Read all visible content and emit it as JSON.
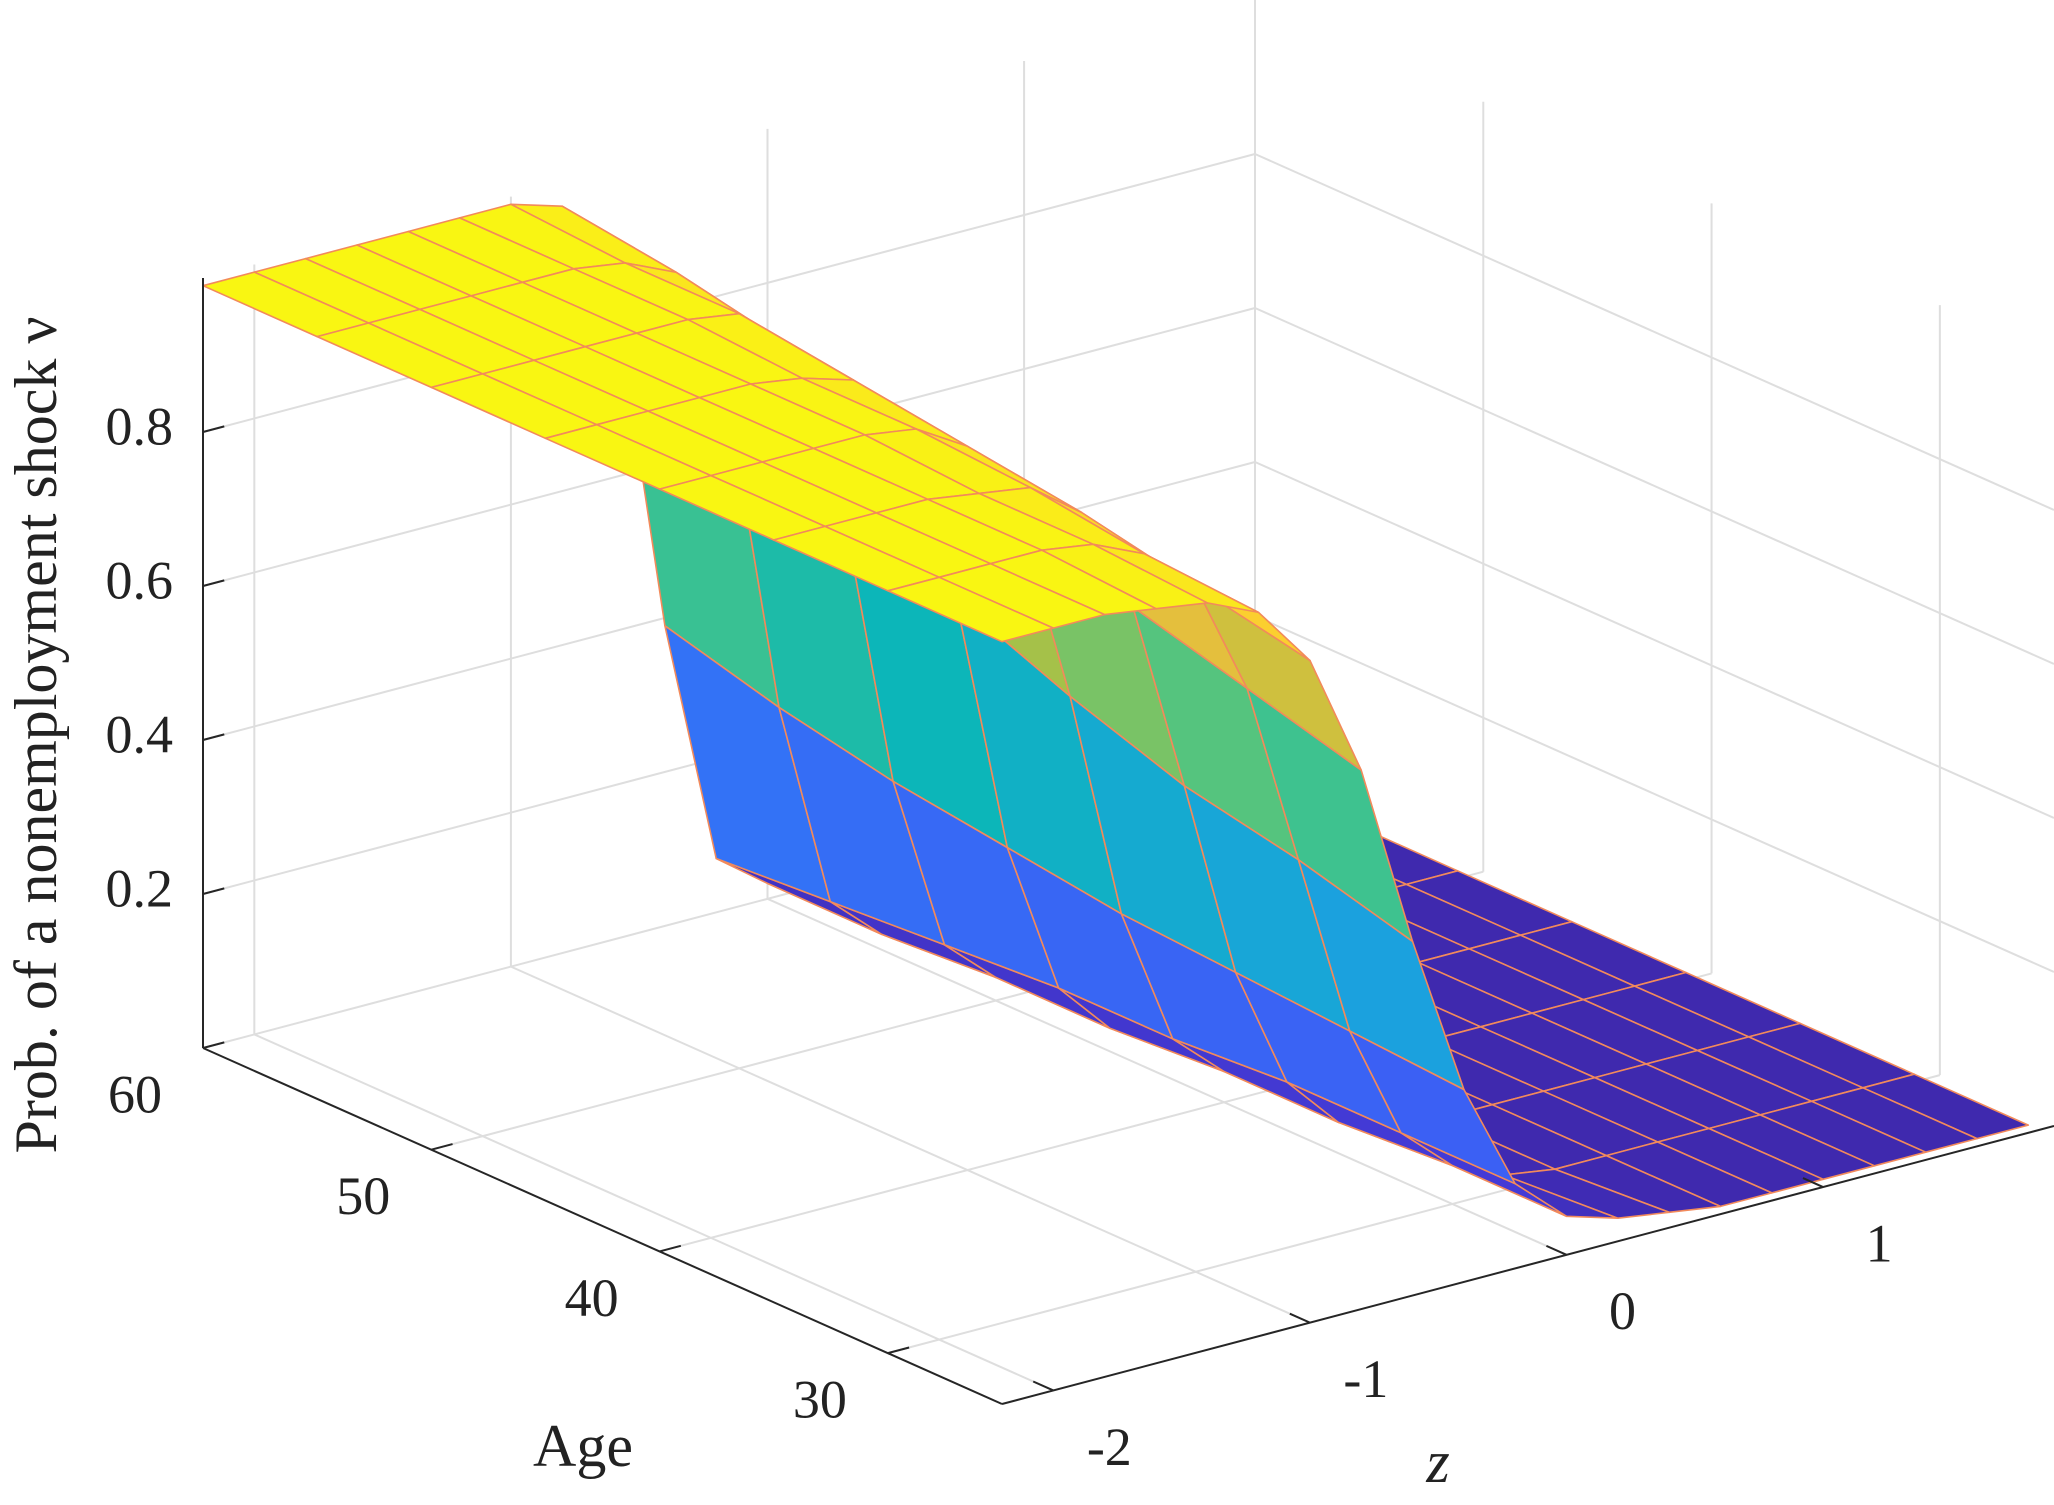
{
  "chart_data": {
    "type": "surface",
    "xlabel": "z",
    "ylabel": "Age",
    "zlabel": "Prob. of a nonemployment shock ν",
    "x": [
      -2.2,
      -2.0,
      -1.8,
      -1.6,
      -1.4,
      -1.2,
      -1.0,
      -0.8,
      -0.6,
      -0.4,
      -0.2,
      0,
      0.2,
      0.4,
      0.6,
      0.8,
      1.0,
      1.2,
      1.4,
      1.6,
      1.8
    ],
    "y": [
      25,
      30,
      35,
      40,
      45,
      50,
      55,
      60
    ],
    "values": [
      [
        0.99,
        0.99,
        0.99,
        0.98,
        0.97,
        0.94,
        0.86,
        0.7,
        0.46,
        0.25,
        0.11,
        0.05,
        0.03,
        0.02,
        0.01,
        0.01,
        0.01,
        0.01,
        0.01,
        0.01,
        0.01
      ],
      [
        0.99,
        0.99,
        0.99,
        0.99,
        0.98,
        0.95,
        0.89,
        0.74,
        0.5,
        0.26,
        0.11,
        0.05,
        0.02,
        0.01,
        0.01,
        0.01,
        0.01,
        0.01,
        0.01,
        0.01,
        0.01
      ],
      [
        0.99,
        0.99,
        0.99,
        0.99,
        0.98,
        0.97,
        0.92,
        0.78,
        0.53,
        0.27,
        0.11,
        0.04,
        0.02,
        0.01,
        0.01,
        0.01,
        0.01,
        0.01,
        0.01,
        0.01,
        0.01
      ],
      [
        0.99,
        0.99,
        0.99,
        0.99,
        0.99,
        0.98,
        0.94,
        0.83,
        0.58,
        0.28,
        0.1,
        0.04,
        0.02,
        0.01,
        0.01,
        0.01,
        0.01,
        0.01,
        0.01,
        0.01,
        0.01
      ],
      [
        0.99,
        0.99,
        0.99,
        0.99,
        0.99,
        0.98,
        0.96,
        0.88,
        0.64,
        0.3,
        0.1,
        0.03,
        0.01,
        0.01,
        0.01,
        0.01,
        0.01,
        0.01,
        0.01,
        0.01,
        0.01
      ],
      [
        0.99,
        0.99,
        0.99,
        0.99,
        0.99,
        0.99,
        0.98,
        0.92,
        0.7,
        0.32,
        0.09,
        0.03,
        0.01,
        0.01,
        0.01,
        0.01,
        0.01,
        0.01,
        0.01,
        0.01,
        0.01
      ],
      [
        0.99,
        0.99,
        0.99,
        0.99,
        0.99,
        0.99,
        0.98,
        0.95,
        0.77,
        0.35,
        0.08,
        0.02,
        0.01,
        0.01,
        0.01,
        0.01,
        0.01,
        0.01,
        0.01,
        0.01,
        0.01
      ],
      [
        0.99,
        0.99,
        0.99,
        0.99,
        0.99,
        0.99,
        0.99,
        0.97,
        0.85,
        0.39,
        0.07,
        0.02,
        0.01,
        0.01,
        0.01,
        0.01,
        0.01,
        0.01,
        0.01,
        0.01,
        0.01
      ]
    ],
    "xlim": [
      -2.2,
      1.9
    ],
    "xticks": [
      -2,
      -1,
      0,
      1
    ],
    "ylim": [
      25,
      60
    ],
    "yticks": [
      30,
      40,
      50,
      60
    ],
    "zlim": [
      0,
      1
    ],
    "zticks": [
      0.2,
      0.4,
      0.6,
      0.8
    ],
    "grid": true,
    "colormap": [
      "#3e26a8",
      "#4646f0",
      "#2d7ff8",
      "#1aa3dc",
      "#0bb8b6",
      "#4bc485",
      "#b4c13f",
      "#fcbe3c",
      "#f9fb0e"
    ],
    "edge_color": "#f28a5b"
  }
}
